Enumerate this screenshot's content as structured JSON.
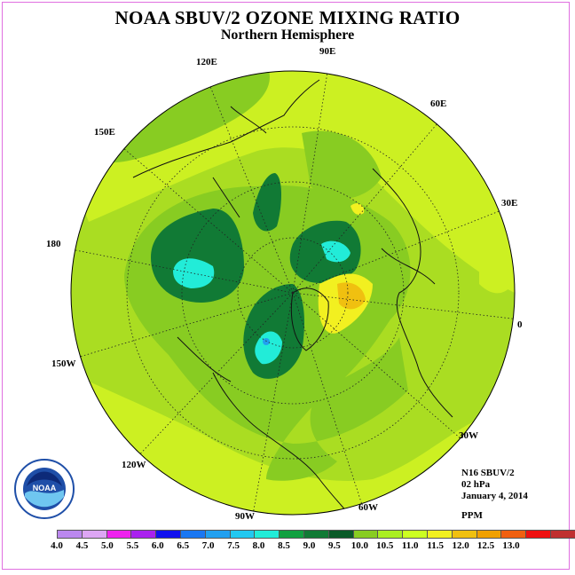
{
  "title": "NOAA SBUV/2 OZONE MIXING RATIO",
  "subtitle": "Northern Hemisphere",
  "longitude_labels": {
    "e90": "90E",
    "e120": "120E",
    "e60": "60E",
    "e150": "150E",
    "e30": "30E",
    "d180": "180",
    "d0": "0",
    "w150": "150W",
    "w30": "30W",
    "w120": "120W",
    "w60": "60W",
    "w90": "90W"
  },
  "info": {
    "instrument": "N16 SBUV/2",
    "level": "02 hPa",
    "date": "January 4, 2014",
    "units": "PPM"
  },
  "logo_text": "NOAA",
  "colorbar": {
    "colors": [
      "#bb88ee",
      "#dda6f4",
      "#ee22ee",
      "#aa22ee",
      "#1111ee",
      "#1a77f2",
      "#22a0f0",
      "#22c8f0",
      "#22ecd8",
      "#11a040",
      "#117a35",
      "#0a5a28",
      "#88cc22",
      "#aaee22",
      "#ccff22",
      "#f2f020",
      "#f0c010",
      "#f0a000",
      "#f06010",
      "#ee1010",
      "#c03030",
      "#805030"
    ],
    "ticks": [
      "4.0",
      "4.5",
      "5.0",
      "5.5",
      "6.0",
      "6.5",
      "7.0",
      "7.5",
      "8.0",
      "8.5",
      "9.0",
      "9.5",
      "10.0",
      "10.5",
      "11.0",
      "11.5",
      "12.0",
      "12.5",
      "13.0"
    ]
  }
}
